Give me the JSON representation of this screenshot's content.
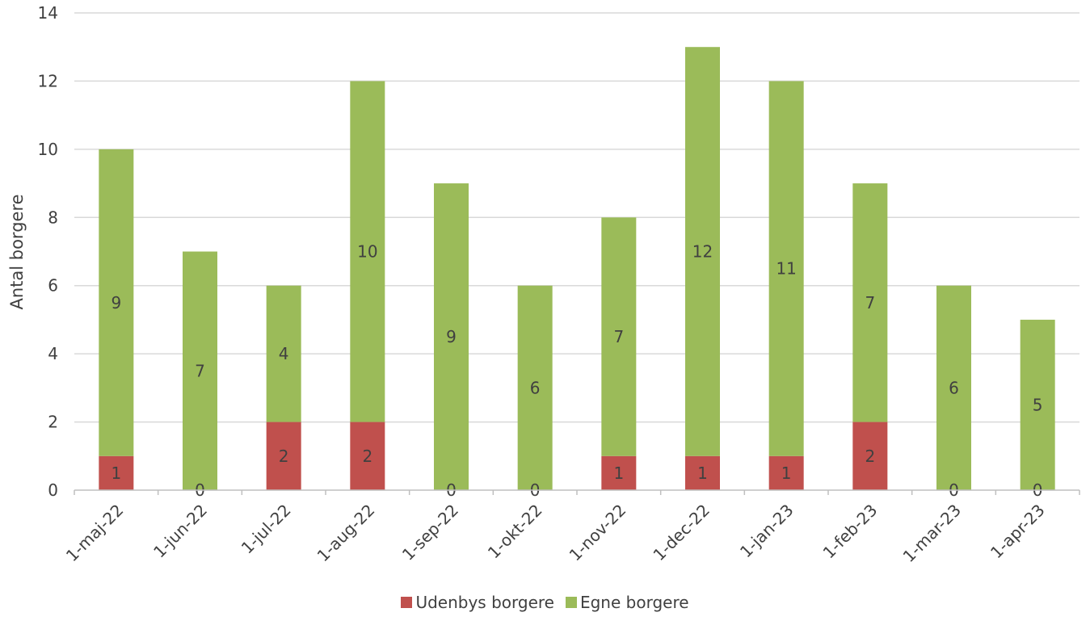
{
  "chart_data": {
    "type": "bar",
    "stacked": true,
    "categories": [
      "1-maj-22",
      "1-jun-22",
      "1-jul-22",
      "1-aug-22",
      "1-sep-22",
      "1-okt-22",
      "1-nov-22",
      "1-dec-22",
      "1-jan-23",
      "1-feb-23",
      "1-mar-23",
      "1-apr-23"
    ],
    "series": [
      {
        "name": "Udenbys borgere",
        "color": "#c0504d",
        "values": [
          1,
          0,
          2,
          2,
          0,
          0,
          1,
          1,
          1,
          2,
          0,
          0
        ]
      },
      {
        "name": "Egne borgere",
        "color": "#9bbb59",
        "values": [
          9,
          7,
          4,
          10,
          9,
          6,
          7,
          12,
          11,
          7,
          6,
          5
        ]
      }
    ],
    "ylabel": "Antal borgere",
    "ylim": [
      0,
      14
    ],
    "yticks": [
      0,
      2,
      4,
      6,
      8,
      10,
      12,
      14
    ],
    "grid": true,
    "legend_position": "bottom"
  }
}
